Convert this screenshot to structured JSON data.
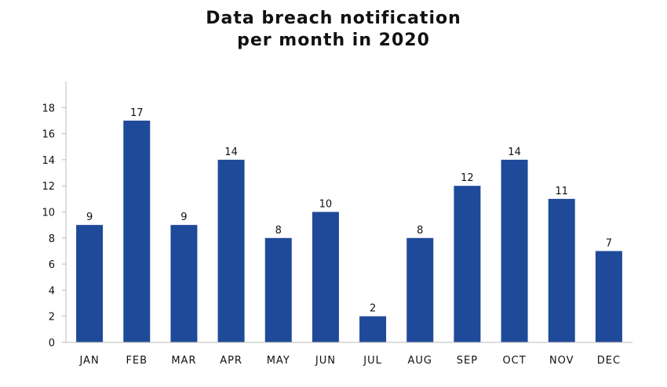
{
  "chart_data": {
    "type": "bar",
    "title_lines": [
      "Data breach notification",
      "per month in 2020"
    ],
    "xlabel": "",
    "ylabel": "",
    "categories": [
      "JAN",
      "FEB",
      "MAR",
      "APR",
      "MAY",
      "JUN",
      "JUL",
      "AUG",
      "SEP",
      "OCT",
      "NOV",
      "DEC"
    ],
    "values": [
      9,
      17,
      9,
      14,
      8,
      10,
      2,
      8,
      12,
      14,
      11,
      7
    ],
    "value_labels": [
      "9",
      "17",
      "9",
      "14",
      "8",
      "10",
      "2",
      "8",
      "12",
      "14",
      "11",
      "7"
    ],
    "ylim": [
      0,
      20
    ],
    "yticks": [
      0,
      2,
      4,
      6,
      8,
      10,
      12,
      14,
      16,
      18
    ],
    "ytick_labels": [
      "0",
      "2",
      "4",
      "6",
      "8",
      "10",
      "12",
      "14",
      "16",
      "18"
    ],
    "grid": false,
    "legend": "none",
    "bar_color": "#1f4a9a",
    "axis_color": "#bbbbbb"
  }
}
